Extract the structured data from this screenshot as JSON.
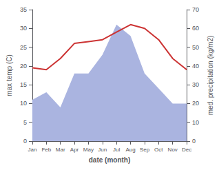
{
  "chart_data": {
    "type": "line",
    "xlabel": "date (month)",
    "ylabel": "max temp (C)",
    "y2label": "med. precipitation (kg/m2)",
    "categories": [
      "Jan",
      "Feb",
      "Mar",
      "Apr",
      "May",
      "Jun",
      "Jul",
      "Aug",
      "Sep",
      "Oct",
      "Nov",
      "Dec"
    ],
    "series": [
      {
        "type": "area",
        "color": "#aab4e0",
        "axis": "y2",
        "values": [
          22,
          26,
          18,
          36,
          36,
          46,
          62,
          56,
          36,
          28,
          20,
          20
        ]
      },
      {
        "type": "line",
        "color": "#cc3333",
        "values": [
          19.5,
          19.0,
          22.0,
          26.0,
          26.5,
          27.0,
          29.0,
          31.0,
          30.0,
          27.0,
          22.0,
          19.0
        ]
      }
    ],
    "ylim": [
      0,
      35
    ],
    "yticks": [
      0,
      5,
      10,
      15,
      20,
      25,
      30,
      35
    ],
    "y2lim": [
      0,
      70
    ],
    "y2ticks": [
      0,
      10,
      20,
      30,
      40,
      50,
      60,
      70
    ],
    "grid": false
  }
}
